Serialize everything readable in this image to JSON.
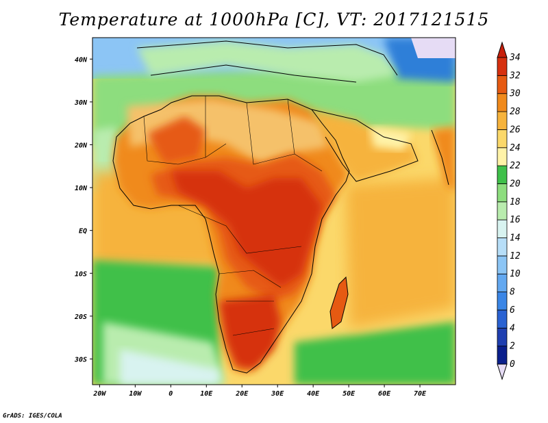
{
  "title": "Temperature at 1000hPa [C], VT: 2017121515",
  "footer": "GrADS: IGES/COLA",
  "colors": {
    "ocean_cool": "#4fc7a0",
    "ocean_warm": "#f7c84e",
    "land_hot": "#d6300f",
    "land_mid": "#f08a1c",
    "sahara": "#f5c16b",
    "mediterranean": "#7ed87a",
    "europe_cold": "#2f7fd8"
  },
  "map": {
    "lon_range": [
      -22,
      80
    ],
    "lat_range": [
      -36,
      45
    ],
    "lat_labels": [
      {
        "lat": 40,
        "label": "40N"
      },
      {
        "lat": 30,
        "label": "30N"
      },
      {
        "lat": 20,
        "label": "20N"
      },
      {
        "lat": 10,
        "label": "10N"
      },
      {
        "lat": 0,
        "label": "EQ"
      },
      {
        "lat": -10,
        "label": "10S"
      },
      {
        "lat": -20,
        "label": "20S"
      },
      {
        "lat": -30,
        "label": "30S"
      }
    ],
    "lon_labels": [
      {
        "lon": -20,
        "label": "20W"
      },
      {
        "lon": -10,
        "label": "10W"
      },
      {
        "lon": 0,
        "label": "0"
      },
      {
        "lon": 10,
        "label": "10E"
      },
      {
        "lon": 20,
        "label": "20E"
      },
      {
        "lon": 30,
        "label": "30E"
      },
      {
        "lon": 40,
        "label": "40E"
      },
      {
        "lon": 50,
        "label": "50E"
      },
      {
        "lon": 60,
        "label": "60E"
      },
      {
        "lon": 70,
        "label": "70E"
      }
    ]
  },
  "colorbar": {
    "levels": [
      {
        "label": "0",
        "color": "#e6dcf5"
      },
      {
        "label": "2",
        "color": "#0a1f8c"
      },
      {
        "label": "4",
        "color": "#1f3fb0"
      },
      {
        "label": "6",
        "color": "#2a62d2"
      },
      {
        "label": "8",
        "color": "#3b86e6"
      },
      {
        "label": "10",
        "color": "#63a8f0"
      },
      {
        "label": "12",
        "color": "#8cc5f5"
      },
      {
        "label": "14",
        "color": "#b7def8"
      },
      {
        "label": "16",
        "color": "#d8f3f0"
      },
      {
        "label": "18",
        "color": "#b9ecae"
      },
      {
        "label": "20",
        "color": "#8ddd7e"
      },
      {
        "label": "22",
        "color": "#3fc04a"
      },
      {
        "label": "24",
        "color": "#fff3a8"
      },
      {
        "label": "26",
        "color": "#fbd86a"
      },
      {
        "label": "28",
        "color": "#f6b33c"
      },
      {
        "label": "30",
        "color": "#f08a1c"
      },
      {
        "label": "32",
        "color": "#e65a12"
      },
      {
        "label": "34",
        "color": "#d6300f"
      }
    ],
    "top_color": "#c7200c",
    "bottom_color": "#e6dcf5"
  }
}
